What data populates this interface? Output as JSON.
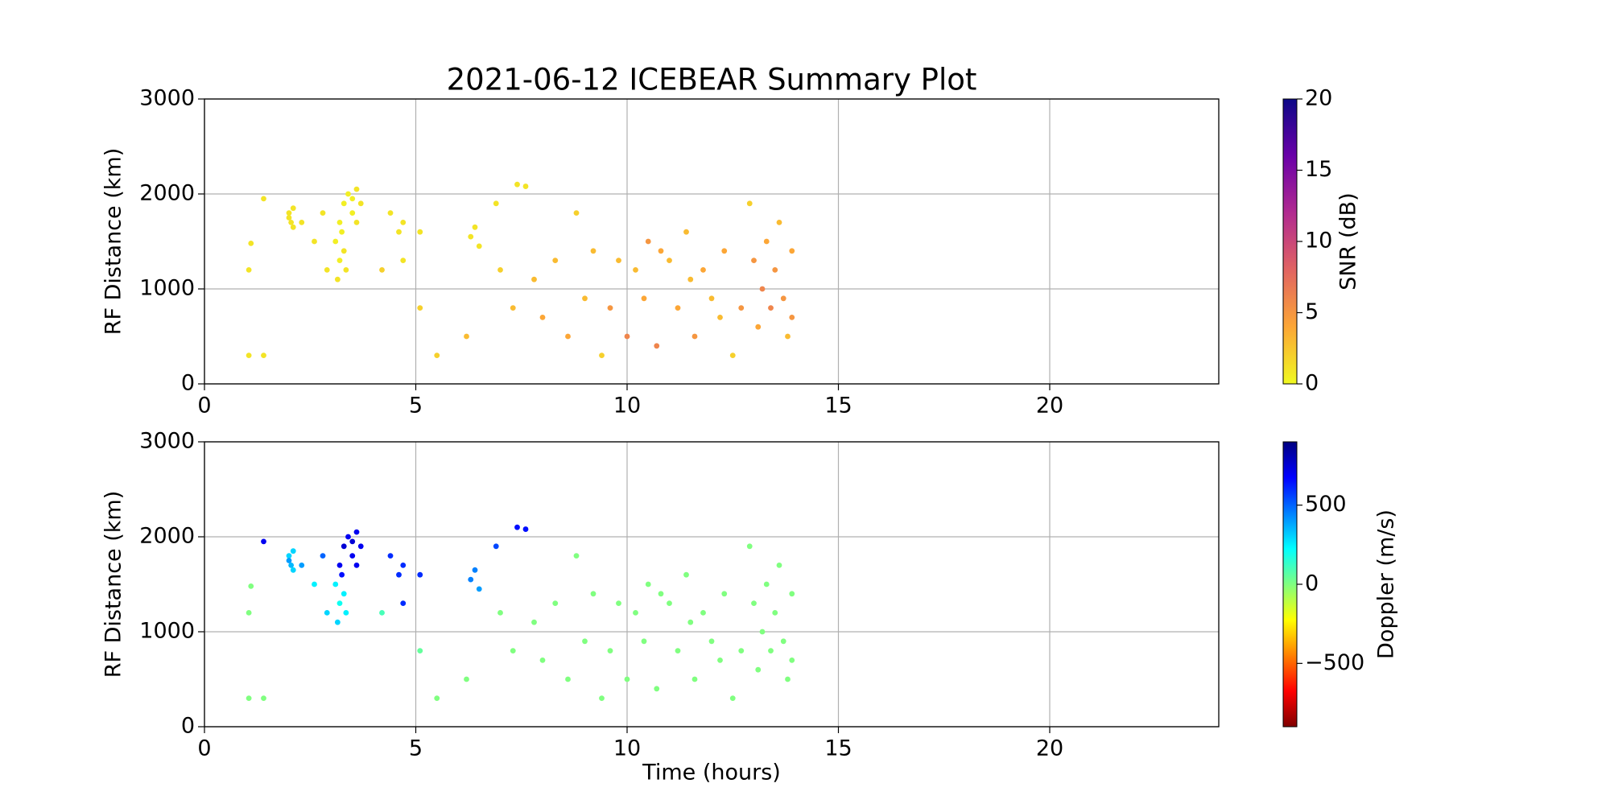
{
  "chart_data": [
    {
      "type": "scatter",
      "title": "2021-06-12 ICEBEAR Summary Plot",
      "ylabel": "RF Distance (km)",
      "xlim": [
        0,
        24
      ],
      "ylim": [
        0,
        3000
      ],
      "xticks": [
        0,
        5,
        10,
        15,
        20
      ],
      "yticks": [
        0,
        1000,
        2000,
        3000
      ],
      "grid": true,
      "colorbar_label": "SNR (dB)",
      "clim": [
        0,
        20
      ],
      "cticks": [
        0,
        5,
        10,
        15,
        20
      ],
      "colormap": [
        "#f0f921",
        "#fca636",
        "#e16462",
        "#b12a90",
        "#6a00a8",
        "#0d0887"
      ],
      "x": [
        2.0,
        2.05,
        2.1,
        2.0,
        2.1,
        3.1,
        3.2,
        3.2,
        3.3,
        3.3,
        3.4,
        3.5,
        3.6,
        3.6,
        3.7,
        3.15,
        3.25,
        3.35,
        3.5,
        1.05,
        1.05,
        1.1,
        1.4,
        1.4,
        2.6,
        2.3,
        2.8,
        2.9,
        4.4,
        4.6,
        4.7,
        4.7,
        4.2,
        5.1,
        5.1,
        5.5,
        6.3,
        6.4,
        6.5,
        6.2,
        6.9,
        7.4,
        7.6,
        7.0,
        7.3,
        7.8,
        8.0,
        8.3,
        8.6,
        8.8,
        9.0,
        9.2,
        9.4,
        9.6,
        9.8,
        10.0,
        10.2,
        10.4,
        10.5,
        10.7,
        11.0,
        11.2,
        11.4,
        11.6,
        11.8,
        12.0,
        12.3,
        12.5,
        12.7,
        12.9,
        13.0,
        13.1,
        13.2,
        13.3,
        13.4,
        13.5,
        13.6,
        13.7,
        13.8,
        13.9,
        13.9,
        12.2,
        11.5,
        10.8
      ],
      "y": [
        1800,
        1700,
        1650,
        1750,
        1850,
        1500,
        1300,
        1700,
        1900,
        1400,
        2000,
        1800,
        2050,
        1700,
        1900,
        1100,
        1600,
        1200,
        1950,
        300,
        1200,
        1480,
        300,
        1950,
        1500,
        1700,
        1800,
        1200,
        1800,
        1600,
        1300,
        1700,
        1200,
        1600,
        800,
        300,
        1550,
        1650,
        1450,
        500,
        1900,
        2100,
        2080,
        1200,
        800,
        1100,
        700,
        1300,
        500,
        1800,
        900,
        1400,
        300,
        800,
        1300,
        500,
        1200,
        900,
        1500,
        400,
        1300,
        800,
        1600,
        500,
        1200,
        900,
        1400,
        300,
        800,
        1900,
        1300,
        600,
        1000,
        1500,
        800,
        1200,
        1700,
        900,
        500,
        1400,
        700,
        700,
        1100,
        1400
      ],
      "color_values": [
        1,
        1,
        1,
        1,
        1,
        0.5,
        0.5,
        0.5,
        0.5,
        1,
        0.5,
        0.5,
        1,
        1,
        1,
        1,
        0.5,
        1,
        0.5,
        1,
        1,
        1,
        1,
        1,
        1,
        1,
        1,
        1,
        1,
        1,
        1,
        1,
        2,
        1,
        2,
        2,
        1,
        1,
        1,
        3,
        1,
        1,
        1,
        2,
        3,
        3,
        4,
        3,
        4,
        2,
        3,
        3,
        2,
        5,
        3,
        6,
        3,
        4,
        5,
        6,
        3,
        4,
        3,
        5,
        4,
        3,
        4,
        2,
        5,
        2,
        5,
        4,
        6,
        4,
        6,
        5,
        3,
        5,
        3,
        4,
        5,
        3,
        3,
        4
      ]
    },
    {
      "type": "scatter",
      "ylabel": "RF Distance (km)",
      "xlabel": "Time (hours)",
      "xlim": [
        0,
        24
      ],
      "ylim": [
        0,
        3000
      ],
      "xticks": [
        0,
        5,
        10,
        15,
        20
      ],
      "yticks": [
        0,
        1000,
        2000,
        3000
      ],
      "grid": true,
      "colorbar_label": "Doppler (m/s)",
      "clim": [
        -900,
        900
      ],
      "cticks": [
        {
          "value": -500,
          "label": "−500"
        },
        0,
        500
      ],
      "colormap": [
        "#800000",
        "#ff0000",
        "#ff8000",
        "#ffff00",
        "#80ff80",
        "#00ffff",
        "#0080ff",
        "#0000ff",
        "#000080"
      ],
      "x": [
        2.0,
        2.05,
        2.1,
        2.0,
        2.1,
        3.1,
        3.2,
        3.2,
        3.3,
        3.3,
        3.4,
        3.5,
        3.6,
        3.6,
        3.7,
        3.15,
        3.25,
        3.35,
        3.5,
        1.05,
        1.05,
        1.1,
        1.4,
        1.4,
        2.6,
        2.3,
        2.8,
        2.9,
        4.4,
        4.6,
        4.7,
        4.7,
        4.2,
        5.1,
        5.1,
        5.5,
        6.3,
        6.4,
        6.5,
        6.2,
        6.9,
        7.4,
        7.6,
        7.0,
        7.3,
        7.8,
        8.0,
        8.3,
        8.6,
        8.8,
        9.0,
        9.2,
        9.4,
        9.6,
        9.8,
        10.0,
        10.2,
        10.4,
        10.5,
        10.7,
        11.0,
        11.2,
        11.4,
        11.6,
        11.8,
        12.0,
        12.3,
        12.5,
        12.7,
        12.9,
        13.0,
        13.1,
        13.2,
        13.3,
        13.4,
        13.5,
        13.6,
        13.7,
        13.8,
        13.9,
        13.9,
        12.2,
        11.5,
        10.8
      ],
      "y": [
        1800,
        1700,
        1650,
        1750,
        1850,
        1500,
        1300,
        1700,
        1900,
        1400,
        2000,
        1800,
        2050,
        1700,
        1900,
        1100,
        1600,
        1200,
        1950,
        300,
        1200,
        1480,
        300,
        1950,
        1500,
        1700,
        1800,
        1200,
        1800,
        1600,
        1300,
        1700,
        1200,
        1600,
        800,
        300,
        1550,
        1650,
        1450,
        500,
        1900,
        2100,
        2080,
        1200,
        800,
        1100,
        700,
        1300,
        500,
        1800,
        900,
        1400,
        300,
        800,
        1300,
        500,
        1200,
        900,
        1500,
        400,
        1300,
        800,
        1600,
        500,
        1200,
        900,
        1400,
        300,
        800,
        1900,
        1300,
        600,
        1000,
        1500,
        800,
        1200,
        1700,
        900,
        500,
        1400,
        700,
        700,
        1100,
        1400
      ],
      "color_values": [
        300,
        350,
        300,
        400,
        300,
        250,
        200,
        700,
        750,
        250,
        700,
        700,
        700,
        700,
        700,
        300,
        650,
        250,
        750,
        0,
        0,
        0,
        0,
        700,
        250,
        400,
        500,
        300,
        600,
        600,
        600,
        600,
        100,
        600,
        50,
        0,
        450,
        450,
        400,
        0,
        550,
        650,
        650,
        0,
        0,
        0,
        0,
        0,
        0,
        0,
        0,
        0,
        0,
        0,
        0,
        0,
        0,
        0,
        0,
        0,
        0,
        0,
        0,
        0,
        0,
        0,
        0,
        0,
        0,
        0,
        0,
        0,
        0,
        0,
        0,
        0,
        0,
        0,
        0,
        0,
        0,
        0,
        0,
        0
      ]
    }
  ]
}
